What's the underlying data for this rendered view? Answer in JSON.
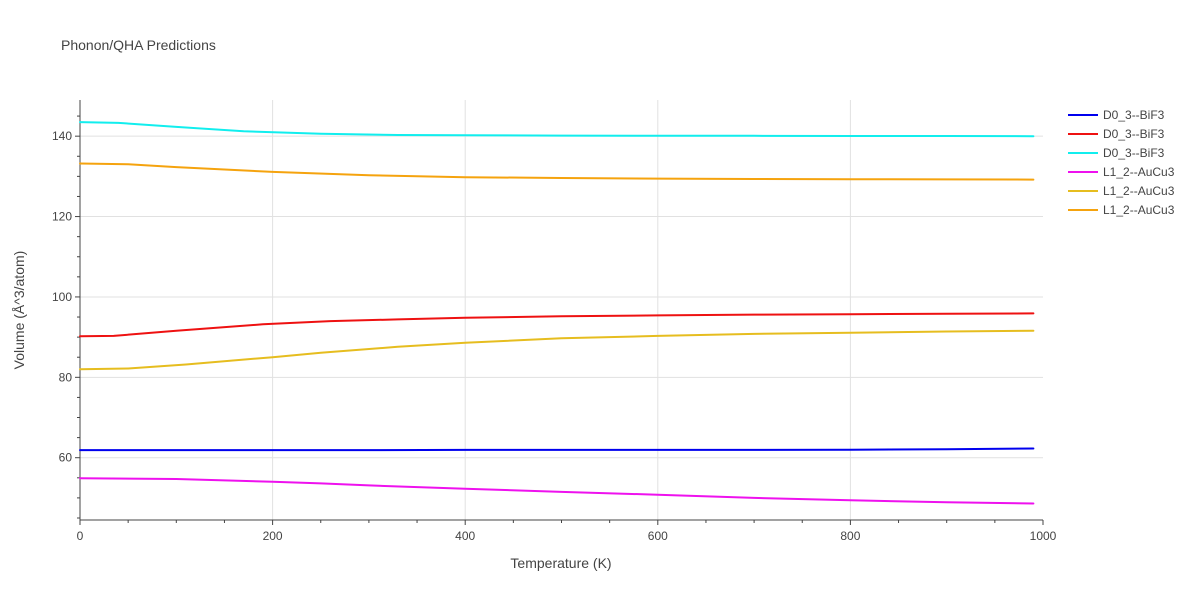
{
  "chart_data": {
    "type": "line",
    "title": "Phonon/QHA Predictions",
    "xlabel": "Temperature (K)",
    "ylabel": "Volume (Å^3/atom)",
    "xlim": [
      0,
      1000
    ],
    "ylim": [
      44.5,
      149
    ],
    "x_ticks": [
      0,
      200,
      400,
      600,
      800,
      1000
    ],
    "y_ticks": [
      60,
      80,
      100,
      120,
      140
    ],
    "grid": true,
    "legend_position": "right",
    "series": [
      {
        "name": "D0_3--BiF3",
        "color": "#0000ee",
        "x": [
          0,
          100,
          200,
          300,
          400,
          500,
          600,
          700,
          800,
          900,
          990
        ],
        "y": [
          61.9,
          61.9,
          61.9,
          61.9,
          61.95,
          61.95,
          61.95,
          61.95,
          62.0,
          62.1,
          62.3
        ]
      },
      {
        "name": "D0_3--BiF3",
        "color": "#ee1111",
        "x": [
          0,
          35,
          100,
          190,
          260,
          330,
          400,
          500,
          600,
          700,
          800,
          900,
          990
        ],
        "y": [
          90.2,
          90.3,
          91.6,
          93.2,
          94.0,
          94.4,
          94.8,
          95.2,
          95.4,
          95.6,
          95.7,
          95.8,
          95.9
        ]
      },
      {
        "name": "D0_3--BiF3",
        "color": "#11eeee",
        "x": [
          0,
          40,
          100,
          170,
          250,
          330,
          400,
          500,
          600,
          700,
          800,
          900,
          990
        ],
        "y": [
          143.5,
          143.3,
          142.3,
          141.2,
          140.6,
          140.3,
          140.25,
          140.15,
          140.1,
          140.1,
          140.05,
          140.05,
          140.0
        ]
      },
      {
        "name": "L1_2--AuCu3",
        "color": "#ee11ee",
        "x": [
          0,
          100,
          200,
          250,
          300,
          400,
          500,
          600,
          700,
          800,
          900,
          990
        ],
        "y": [
          54.9,
          54.7,
          54.0,
          53.6,
          53.1,
          52.3,
          51.5,
          50.8,
          50.0,
          49.4,
          48.9,
          48.6
        ]
      },
      {
        "name": "L1_2--AuCu3",
        "color": "#e6bd1f",
        "x": [
          0,
          50,
          110,
          200,
          250,
          330,
          400,
          500,
          600,
          700,
          800,
          900,
          990
        ],
        "y": [
          82.0,
          82.2,
          83.2,
          85.0,
          86.1,
          87.6,
          88.6,
          89.7,
          90.3,
          90.8,
          91.1,
          91.4,
          91.6
        ]
      },
      {
        "name": "L1_2--AuCu3",
        "color": "#f5a30e",
        "x": [
          0,
          50,
          100,
          200,
          300,
          400,
          500,
          600,
          700,
          800,
          900,
          990
        ],
        "y": [
          133.2,
          133.0,
          132.3,
          131.1,
          130.3,
          129.8,
          129.6,
          129.45,
          129.35,
          129.3,
          129.25,
          129.2
        ]
      }
    ]
  }
}
